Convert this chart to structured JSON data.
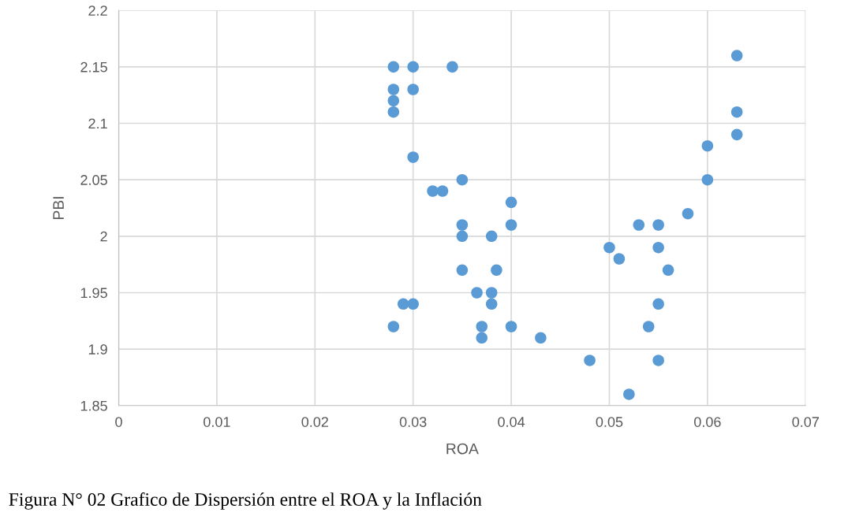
{
  "chart_data": {
    "type": "scatter",
    "xlabel": "ROA",
    "ylabel": "PBI",
    "x": [
      0.028,
      0.03,
      0.034,
      0.028,
      0.03,
      0.028,
      0.028,
      0.03,
      0.035,
      0.032,
      0.033,
      0.04,
      0.035,
      0.04,
      0.035,
      0.038,
      0.035,
      0.0385,
      0.0365,
      0.038,
      0.029,
      0.03,
      0.038,
      0.028,
      0.037,
      0.04,
      0.037,
      0.043,
      0.063,
      0.063,
      0.063,
      0.06,
      0.06,
      0.058,
      0.053,
      0.055,
      0.05,
      0.055,
      0.051,
      0.056,
      0.055,
      0.054,
      0.048,
      0.055,
      0.052
    ],
    "series": [
      {
        "color": "#5b9bd5",
        "values": [
          2.15,
          2.15,
          2.15,
          2.13,
          2.13,
          2.12,
          2.11,
          2.07,
          2.05,
          2.04,
          2.04,
          2.03,
          2.01,
          2.01,
          2.0,
          2.0,
          1.97,
          1.97,
          1.95,
          1.95,
          1.94,
          1.94,
          1.94,
          1.92,
          1.92,
          1.92,
          1.91,
          1.91,
          2.16,
          2.11,
          2.09,
          2.08,
          2.05,
          2.02,
          2.01,
          2.01,
          1.99,
          1.99,
          1.98,
          1.97,
          1.94,
          1.92,
          1.89,
          1.89,
          1.86
        ]
      }
    ],
    "xlim": [
      0,
      0.07
    ],
    "xticks": [
      0,
      0.01,
      0.02,
      0.03,
      0.04,
      0.05,
      0.06,
      0.07
    ],
    "ylim": [
      1.85,
      2.2
    ],
    "yticks": [
      1.85,
      1.9,
      1.95,
      2,
      2.05,
      2.1,
      2.15,
      2.2
    ],
    "grid": true,
    "marker": "circle",
    "legend": false,
    "annotations": [
      "Figura N° 02 Grafico de Dispersión entre el ROA y la Inflación"
    ]
  }
}
